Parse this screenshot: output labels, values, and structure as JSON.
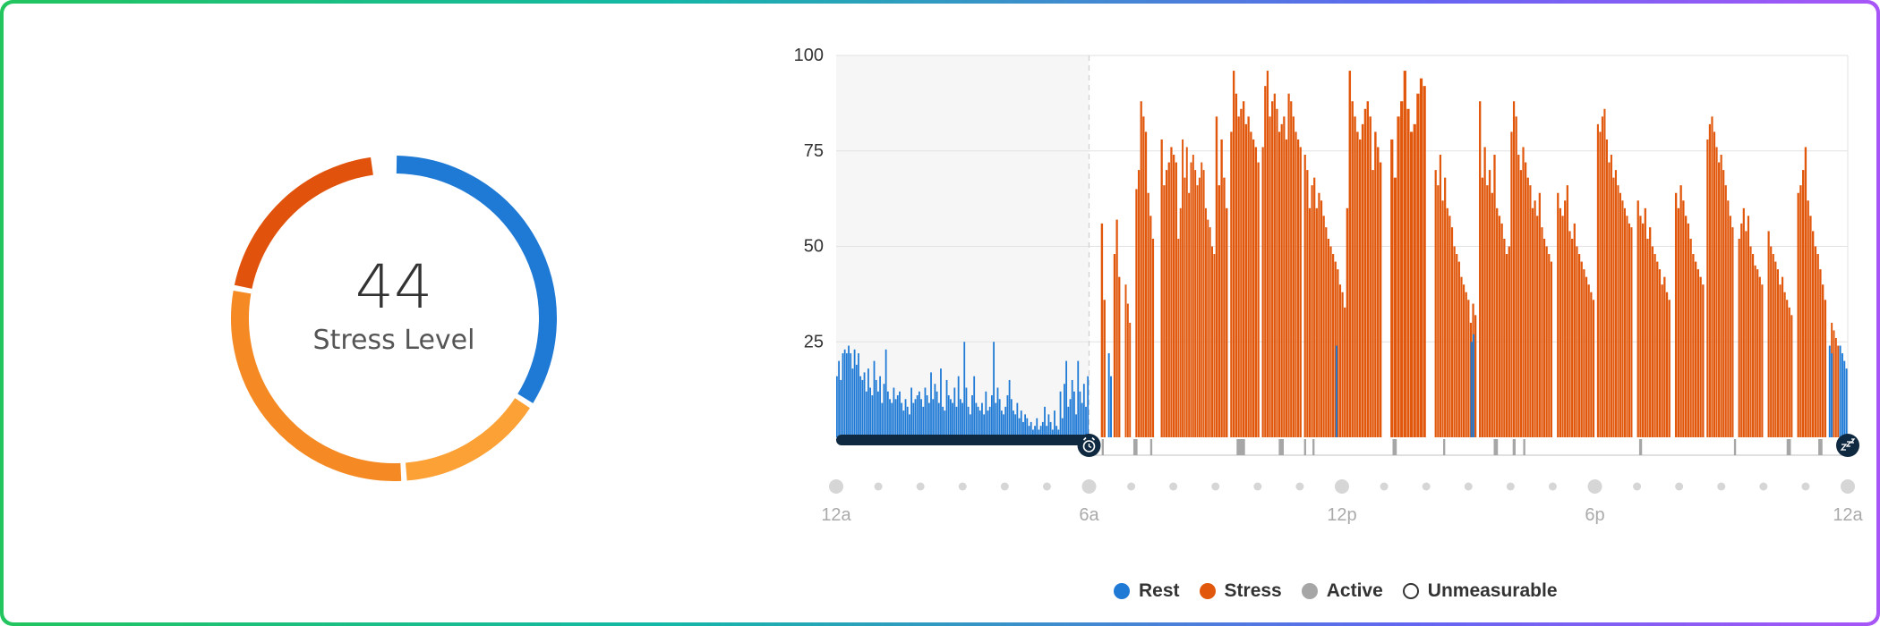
{
  "stress_score": {
    "value": "44",
    "label": "Stress Level"
  },
  "breakdown_ring": [
    {
      "category": "Rest",
      "fraction": 0.34,
      "color": "#1f7ad6"
    },
    {
      "category": "Stress",
      "fraction": 0.15,
      "color": "#fba136"
    },
    {
      "category": "Stress",
      "fraction": 0.29,
      "color": "#f58a24"
    },
    {
      "category": "Stress",
      "fraction": 0.2,
      "color": "#e1530c"
    }
  ],
  "colors": {
    "rest": "#1f7ad6",
    "stress": "#e1580d",
    "active": "#a6a6a6",
    "unmeasurable": "#ffffff",
    "sleep_bar": "#0f2a40",
    "grid": "#e2e2e2",
    "sleep_shade": "#f6f6f6"
  },
  "chart_data": {
    "type": "bar",
    "x_unit": "hours after midnight",
    "xlim": [
      0,
      24
    ],
    "ylim": [
      0,
      100
    ],
    "y_ticks": [
      "25",
      "50",
      "75",
      "100"
    ],
    "x_ticks": [
      {
        "label": "12a",
        "x": 0
      },
      {
        "label": "6a",
        "x": 6
      },
      {
        "label": "12p",
        "x": 12
      },
      {
        "label": "6p",
        "x": 18
      },
      {
        "label": "12a",
        "x": 24
      }
    ],
    "sleep_period": [
      0,
      6
    ],
    "wake_icon": "alarm-clock-icon",
    "sleep_icon": "zzz-icon",
    "rest_segments": [
      {
        "start": 0.0,
        "end": 6.0,
        "values": [
          16,
          20,
          15,
          22,
          23,
          22,
          24,
          22,
          18,
          23,
          19,
          22,
          16,
          15,
          17,
          12,
          18,
          13,
          11,
          20,
          15,
          12,
          16,
          9,
          14,
          23,
          12,
          10,
          9,
          13,
          10,
          11,
          12,
          9,
          7,
          10,
          8,
          6,
          13,
          9,
          10,
          11,
          12,
          10,
          8,
          13,
          11,
          9,
          17,
          10,
          14,
          12,
          9,
          18,
          8,
          7,
          15,
          11,
          10,
          9,
          13,
          8,
          16,
          10,
          9,
          25,
          13,
          8,
          6,
          11,
          16,
          9,
          8,
          7,
          9,
          6,
          12,
          7,
          8,
          11,
          25,
          9,
          13,
          10,
          7,
          6,
          8,
          11,
          15,
          10,
          7,
          6,
          9,
          5,
          7,
          4,
          6,
          5,
          3,
          4,
          2,
          3,
          5,
          2,
          3,
          4,
          8,
          3,
          6,
          4,
          2,
          7,
          3,
          2,
          12,
          5,
          14,
          20,
          8,
          10,
          15,
          12,
          6,
          20,
          12,
          9,
          14,
          8,
          16
        ]
      },
      {
        "start": 6.45,
        "end": 6.55,
        "values": [
          22,
          16
        ]
      },
      {
        "start": 11.85,
        "end": 11.9,
        "values": [
          24
        ]
      },
      {
        "start": 15.05,
        "end": 15.15,
        "values": [
          25,
          27
        ]
      },
      {
        "start": 23.55,
        "end": 23.65,
        "values": [
          24,
          22
        ]
      },
      {
        "start": 23.8,
        "end": 24.0,
        "values": [
          24,
          22,
          20,
          18
        ]
      }
    ],
    "stress_segments": [
      {
        "start": 6.28,
        "end": 6.4,
        "values": [
          56,
          36
        ]
      },
      {
        "start": 6.58,
        "end": 6.75,
        "values": [
          48,
          57,
          42
        ]
      },
      {
        "start": 6.85,
        "end": 7.0,
        "values": [
          40,
          35,
          30
        ]
      },
      {
        "start": 7.1,
        "end": 7.55,
        "values": [
          65,
          70,
          88,
          84,
          80,
          64,
          58,
          52
        ]
      },
      {
        "start": 7.7,
        "end": 8.1,
        "values": [
          78,
          66,
          70,
          72,
          76,
          74,
          72
        ]
      },
      {
        "start": 8.1,
        "end": 9.0,
        "values": [
          52,
          60,
          78,
          68,
          76,
          64,
          72,
          74,
          70,
          66,
          68,
          72,
          70,
          60,
          57,
          55,
          50,
          48
        ]
      },
      {
        "start": 9.0,
        "end": 9.3,
        "values": [
          84,
          66,
          78,
          68,
          60
        ]
      },
      {
        "start": 9.35,
        "end": 10.05,
        "values": [
          80,
          96,
          90,
          84,
          86,
          88,
          82,
          84,
          80,
          78,
          76,
          72
        ]
      },
      {
        "start": 10.1,
        "end": 11.05,
        "values": [
          76,
          92,
          96,
          84,
          88,
          90,
          86,
          80,
          82,
          84,
          78,
          90,
          88,
          84,
          80,
          78,
          76
        ]
      },
      {
        "start": 11.1,
        "end": 12.1,
        "values": [
          74,
          70,
          60,
          66,
          68,
          60,
          64,
          62,
          58,
          55,
          52,
          50,
          48,
          46,
          44,
          40,
          38,
          34
        ]
      },
      {
        "start": 12.1,
        "end": 12.95,
        "values": [
          60,
          96,
          88,
          84,
          80,
          78,
          82,
          86,
          88,
          84,
          70,
          80,
          76,
          72
        ]
      },
      {
        "start": 13.15,
        "end": 14.0,
        "values": [
          78,
          68,
          84,
          88,
          96,
          86,
          80,
          82,
          90,
          94,
          92
        ]
      },
      {
        "start": 14.2,
        "end": 15.2,
        "values": [
          70,
          66,
          74,
          62,
          68,
          60,
          58,
          55,
          50,
          48,
          46,
          42,
          40,
          38,
          36,
          30,
          35,
          32
        ]
      },
      {
        "start": 15.25,
        "end": 16.0,
        "values": [
          88,
          68,
          76,
          66,
          70,
          64,
          74,
          60,
          58,
          56,
          52,
          48,
          50
        ]
      },
      {
        "start": 16.0,
        "end": 17.0,
        "values": [
          80,
          88,
          84,
          74,
          70,
          76,
          72,
          68,
          66,
          60,
          62,
          58,
          64,
          55,
          52,
          50,
          48,
          46
        ]
      },
      {
        "start": 17.1,
        "end": 18.0,
        "values": [
          64,
          60,
          58,
          62,
          66,
          54,
          52,
          56,
          50,
          48,
          46,
          44,
          42,
          40,
          38,
          36
        ]
      },
      {
        "start": 18.05,
        "end": 18.9,
        "values": [
          82,
          80,
          84,
          86,
          78,
          72,
          74,
          68,
          70,
          66,
          64,
          62,
          60,
          58,
          56,
          55
        ]
      },
      {
        "start": 19.0,
        "end": 19.8,
        "values": [
          62,
          58,
          56,
          60,
          52,
          55,
          50,
          48,
          46,
          44,
          40,
          42,
          38,
          36
        ]
      },
      {
        "start": 19.9,
        "end": 20.6,
        "values": [
          64,
          60,
          66,
          62,
          58,
          56,
          52,
          48,
          46,
          44,
          42,
          40
        ]
      },
      {
        "start": 20.65,
        "end": 21.3,
        "values": [
          78,
          82,
          84,
          80,
          76,
          72,
          74,
          70,
          66,
          62,
          58,
          55
        ]
      },
      {
        "start": 21.4,
        "end": 22.0,
        "values": [
          52,
          56,
          60,
          54,
          58,
          50,
          48,
          45,
          44,
          42,
          40
        ]
      },
      {
        "start": 22.1,
        "end": 22.7,
        "values": [
          54,
          50,
          48,
          46,
          44,
          40,
          42,
          38,
          36,
          34,
          32
        ]
      },
      {
        "start": 22.8,
        "end": 23.5,
        "values": [
          64,
          66,
          70,
          76,
          62,
          58,
          54,
          50,
          48,
          44,
          40,
          36
        ]
      },
      {
        "start": 23.6,
        "end": 23.8,
        "values": [
          30,
          28,
          26,
          24
        ]
      }
    ],
    "active_marks": [
      {
        "start": 6.3,
        "end": 6.35
      },
      {
        "start": 7.05,
        "end": 7.15
      },
      {
        "start": 7.45,
        "end": 7.5
      },
      {
        "start": 9.5,
        "end": 9.7
      },
      {
        "start": 10.5,
        "end": 10.62
      },
      {
        "start": 11.1,
        "end": 11.15
      },
      {
        "start": 11.3,
        "end": 11.35
      },
      {
        "start": 13.2,
        "end": 13.3
      },
      {
        "start": 14.4,
        "end": 14.45
      },
      {
        "start": 15.6,
        "end": 15.7
      },
      {
        "start": 16.05,
        "end": 16.12
      },
      {
        "start": 16.3,
        "end": 16.35
      },
      {
        "start": 19.05,
        "end": 19.12
      },
      {
        "start": 21.3,
        "end": 21.35
      },
      {
        "start": 22.55,
        "end": 22.65
      },
      {
        "start": 23.3,
        "end": 23.4
      }
    ],
    "legend": [
      {
        "label": "Rest",
        "color": "#1f7ad6",
        "hollow": false
      },
      {
        "label": "Stress",
        "color": "#e1580d",
        "hollow": false
      },
      {
        "label": "Active",
        "color": "#a6a6a6",
        "hollow": false
      },
      {
        "label": "Unmeasurable",
        "color": "#ffffff",
        "hollow": true
      }
    ]
  }
}
